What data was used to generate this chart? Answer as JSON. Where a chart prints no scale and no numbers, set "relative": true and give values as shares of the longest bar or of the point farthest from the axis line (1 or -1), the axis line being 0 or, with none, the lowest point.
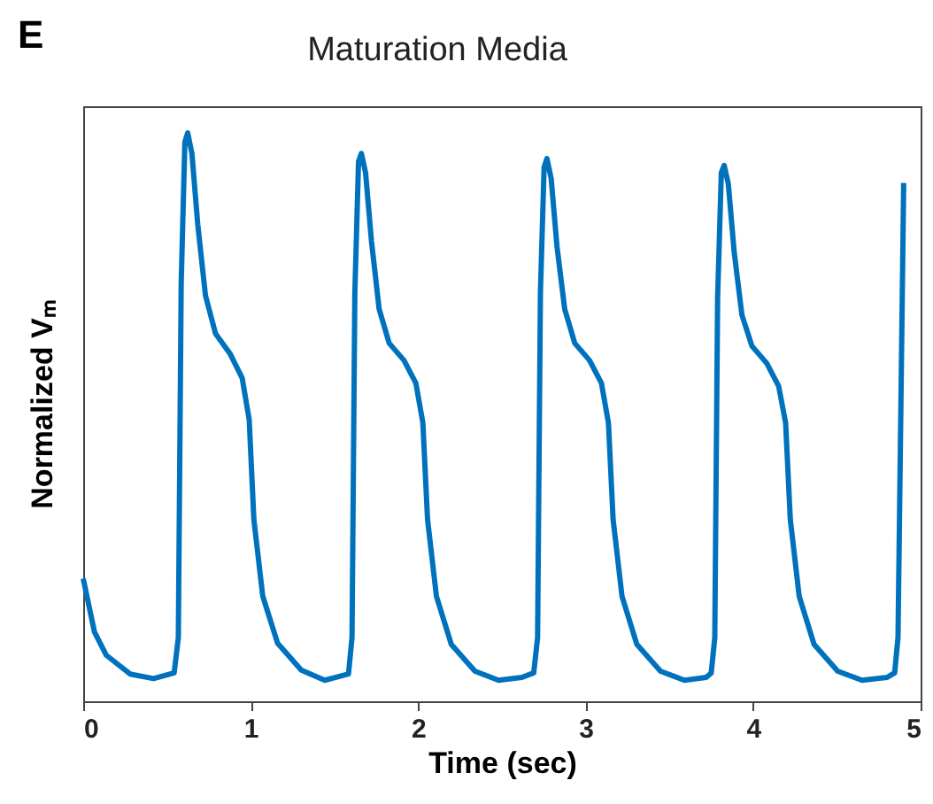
{
  "chart_data": {
    "type": "line",
    "title": "Maturation Media",
    "xlabel": "Time (sec)",
    "ylabel": "Normalized Vₘ",
    "annotations": [
      "E"
    ],
    "relative": true,
    "tick_labels": "x",
    "grid": false,
    "marker": "none",
    "line_style": "solid",
    "xlim": [
      0,
      5
    ],
    "xticks": [
      0,
      1,
      2,
      3,
      4,
      5
    ],
    "x": [
      0,
      0.067,
      0.138,
      0.28,
      0.42,
      0.543,
      0.568,
      0.585,
      0.607,
      0.624,
      0.649,
      0.684,
      0.73,
      0.79,
      0.878,
      0.949,
      0.991,
      1.019,
      1.072,
      1.161,
      1.302,
      1.442,
      1.584,
      1.605,
      1.622,
      1.644,
      1.661,
      1.686,
      1.721,
      1.767,
      1.827,
      1.915,
      1.986,
      2.028,
      2.056,
      2.109,
      2.198,
      2.339,
      2.48,
      2.62,
      2.69,
      2.713,
      2.73,
      2.752,
      2.769,
      2.794,
      2.829,
      2.875,
      2.935,
      3.023,
      3.094,
      3.136,
      3.164,
      3.217,
      3.306,
      3.447,
      3.59,
      3.72,
      3.75,
      3.771,
      3.788,
      3.81,
      3.827,
      3.852,
      3.887,
      3.933,
      3.993,
      4.081,
      4.152,
      4.194,
      4.222,
      4.275,
      4.364,
      4.505,
      4.65,
      4.8,
      4.845,
      4.865,
      4.899
    ],
    "series": [
      {
        "color": "#0072bd",
        "values": [
          0.216,
          0.122,
          0.081,
          0.048,
          0.04,
          0.05,
          0.112,
          0.735,
          0.984,
          1.0,
          0.964,
          0.839,
          0.714,
          0.647,
          0.611,
          0.569,
          0.496,
          0.32,
          0.185,
          0.102,
          0.055,
          0.037,
          0.048,
          0.112,
          0.72,
          0.95,
          0.964,
          0.93,
          0.81,
          0.69,
          0.63,
          0.6,
          0.56,
          0.49,
          0.32,
          0.185,
          0.1,
          0.053,
          0.037,
          0.042,
          0.05,
          0.112,
          0.72,
          0.94,
          0.955,
          0.92,
          0.8,
          0.69,
          0.63,
          0.6,
          0.56,
          0.49,
          0.32,
          0.185,
          0.1,
          0.053,
          0.037,
          0.042,
          0.05,
          0.112,
          0.71,
          0.93,
          0.943,
          0.91,
          0.79,
          0.68,
          0.625,
          0.595,
          0.555,
          0.49,
          0.32,
          0.185,
          0.1,
          0.053,
          0.037,
          0.042,
          0.05,
          0.112,
          0.912
        ]
      }
    ]
  }
}
